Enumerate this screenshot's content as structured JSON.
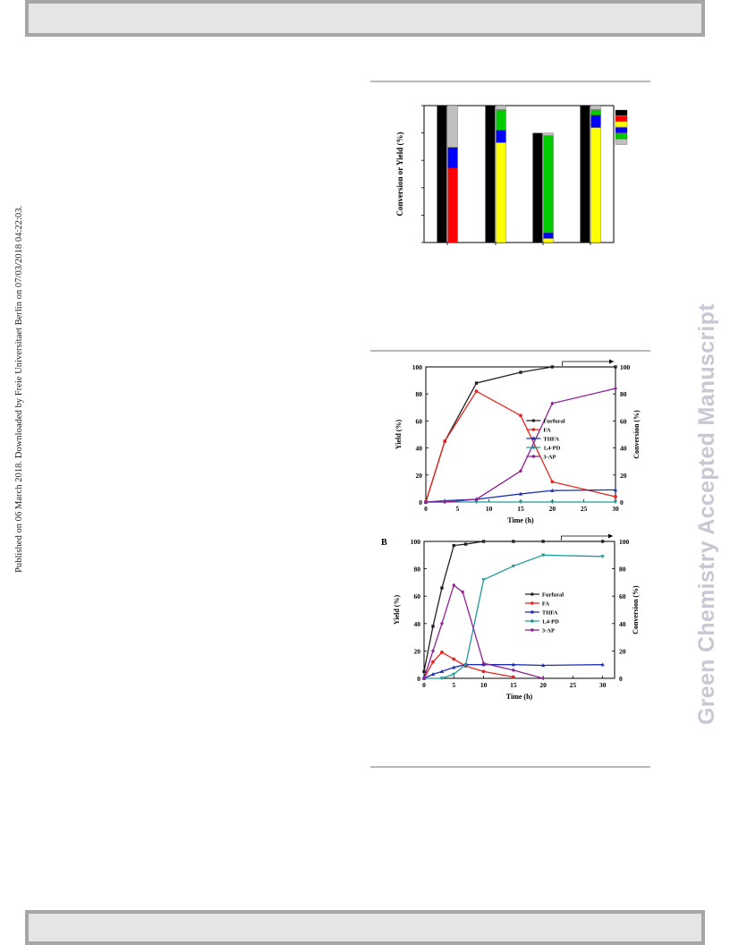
{
  "header": {
    "bar": ""
  },
  "footer": {
    "bar": ""
  },
  "sidebar_left": {
    "text": "Published on 06 March 2018. Downloaded by Freie Universitaet Berlin on 07/03/2018 04:22:03."
  },
  "sidebar_right": {
    "text": "Green Chemistry Accepted Manuscript"
  },
  "colors": {
    "black": "#000000",
    "red": "#ff0000",
    "blue": "#0000ff",
    "yellow": "#ffff00",
    "green": "#00cc00",
    "gray": "#c0c0c0",
    "furfural": "#222222",
    "fa": "#e8231d",
    "thfa": "#1b2fb0",
    "pd": "#1f9a9a",
    "ap": "#8e1f96"
  },
  "chart_data": [
    {
      "type": "bar",
      "ylabel": "Conversion or Yield (%)",
      "ylim": [
        0,
        100
      ],
      "groups": [
        {
          "conversion": 100,
          "stack": [
            {
              "color": "red",
              "value": 54.5
            },
            {
              "color": "blue",
              "value": 15
            },
            {
              "color": "gray",
              "value": 30.5
            }
          ]
        },
        {
          "conversion": 100,
          "stack": [
            {
              "color": "yellow",
              "value": 73
            },
            {
              "color": "blue",
              "value": 9
            },
            {
              "color": "green",
              "value": 15
            },
            {
              "color": "gray",
              "value": 3
            }
          ]
        },
        {
          "conversion": 80,
          "stack": [
            {
              "color": "yellow",
              "value": 3
            },
            {
              "color": "blue",
              "value": 4
            },
            {
              "color": "green",
              "value": 71
            },
            {
              "color": "gray",
              "value": 2
            }
          ]
        },
        {
          "conversion": 100,
          "stack": [
            {
              "color": "yellow",
              "value": 84
            },
            {
              "color": "blue",
              "value": 9
            },
            {
              "color": "green",
              "value": 4
            },
            {
              "color": "gray",
              "value": 3
            }
          ]
        }
      ],
      "legend_swatches": [
        "black",
        "red",
        "yellow",
        "blue",
        "green",
        "gray"
      ]
    },
    {
      "type": "line",
      "xlabel": "Time (h)",
      "ylabel": "Yield (%)",
      "ylabel_right": "Conversion (%)",
      "xlim": [
        0,
        30
      ],
      "ylim": [
        0,
        100
      ],
      "xticks": [
        0,
        5,
        10,
        15,
        20,
        25,
        30
      ],
      "yticks": [
        0,
        20,
        40,
        60,
        80,
        100
      ],
      "series": [
        {
          "name": "Furfural",
          "color": "furfural",
          "marker": "square",
          "x": [
            0,
            3,
            8,
            15,
            20,
            30
          ],
          "y": [
            0,
            45,
            88,
            96,
            100,
            100
          ]
        },
        {
          "name": "FA",
          "color": "fa",
          "marker": "circle",
          "x": [
            0,
            3,
            8,
            15,
            20,
            30
          ],
          "y": [
            0,
            45,
            82,
            64,
            15,
            4
          ]
        },
        {
          "name": "THFA",
          "color": "thfa",
          "marker": "triangle-up",
          "x": [
            0,
            3,
            8,
            15,
            20,
            30
          ],
          "y": [
            0,
            1,
            2,
            6,
            8.5,
            9
          ]
        },
        {
          "name": "1,4-PD",
          "color": "pd",
          "marker": "triangle-down",
          "x": [
            0,
            3,
            8,
            15,
            20,
            30
          ],
          "y": [
            0,
            0,
            0,
            0,
            0,
            0
          ]
        },
        {
          "name": "3-AP",
          "color": "ap",
          "marker": "diamond",
          "x": [
            0,
            3,
            8,
            15,
            20,
            30
          ],
          "y": [
            0,
            0,
            2,
            23,
            73,
            84
          ]
        }
      ]
    },
    {
      "type": "line",
      "panel_label": "B",
      "xlabel": "Time (h)",
      "ylabel": "Yield (%)",
      "ylabel_right": "Conversion (%)",
      "xlim": [
        0,
        32
      ],
      "ylim": [
        0,
        100
      ],
      "xticks": [
        0,
        5,
        10,
        15,
        20,
        25,
        30
      ],
      "yticks": [
        0,
        20,
        40,
        60,
        80,
        100
      ],
      "series": [
        {
          "name": "Furfural",
          "color": "furfural",
          "marker": "square",
          "x": [
            0,
            1.5,
            3,
            5,
            7,
            10,
            15,
            20,
            30
          ],
          "y": [
            5,
            38,
            66,
            97,
            98,
            100,
            100,
            100,
            100
          ]
        },
        {
          "name": "FA",
          "color": "fa",
          "marker": "circle",
          "x": [
            0,
            1.5,
            3,
            5,
            7,
            10,
            15
          ],
          "y": [
            0,
            12,
            19,
            14,
            9,
            5,
            1
          ]
        },
        {
          "name": "THFA",
          "color": "thfa",
          "marker": "triangle-up",
          "x": [
            0,
            1.5,
            3,
            5,
            7,
            10,
            15,
            20,
            30
          ],
          "y": [
            0,
            3,
            5,
            8,
            10,
            10,
            10,
            9.5,
            10
          ]
        },
        {
          "name": "1,4-PD",
          "color": "pd",
          "marker": "triangle-down",
          "x": [
            0,
            3,
            5,
            7,
            10,
            15,
            20,
            30
          ],
          "y": [
            0,
            0,
            3,
            10,
            72,
            82,
            90,
            89
          ]
        },
        {
          "name": "3-AP",
          "color": "ap",
          "marker": "diamond",
          "x": [
            0,
            1.5,
            3,
            5,
            6.5,
            10,
            15,
            20
          ],
          "y": [
            0,
            20,
            40,
            68,
            63,
            11,
            6,
            0
          ]
        }
      ]
    }
  ]
}
